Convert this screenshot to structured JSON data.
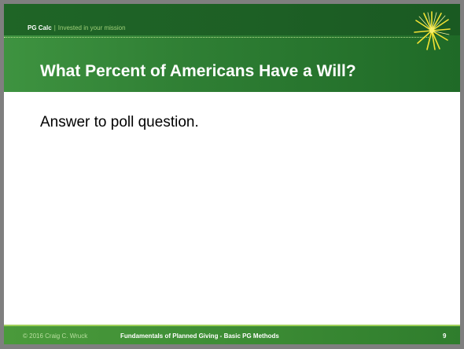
{
  "header": {
    "brand_name": "PG Calc",
    "brand_separator": "|",
    "brand_tagline": "Invested in your mission",
    "title": "What Percent of Americans Have a Will?"
  },
  "body": {
    "text": "Answer to poll question."
  },
  "footer": {
    "copyright": "© 2016 Craig C. Wruck",
    "course": "Fundamentals of Planned Giving - Basic PG Methods",
    "page_number": "9"
  },
  "colors": {
    "header_green": "#2f7f34",
    "brand_accent": "#9fd07a",
    "footer_green": "#3d8d35",
    "sunburst": "#f2e233"
  },
  "icons": {
    "logo": "sunburst-icon"
  }
}
